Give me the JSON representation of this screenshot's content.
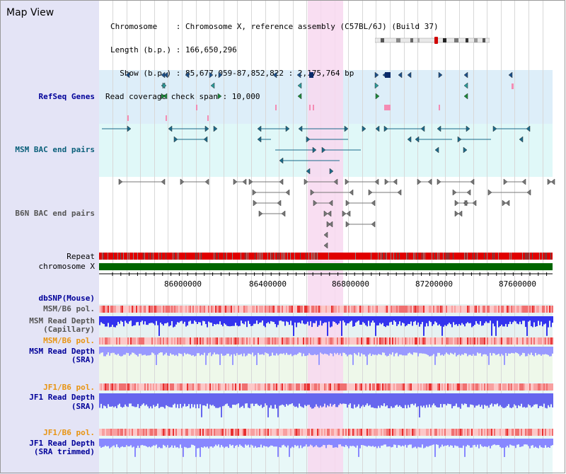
{
  "window": {
    "title": "Map View"
  },
  "info": {
    "chromosome_line": "Chromosome    : Chromosome X, reference assembly (C57BL/6J) (Build 37)",
    "length_line": "Length (b.p.) : 166,650,296",
    "show_line": "  Show (b.p.) : 85,677,059-87,852,822 : 2,175,764 bp",
    "coverage_line": "Read coverage check span : 10,000"
  },
  "tracks": {
    "refseq": "RefSeq Genes",
    "msm_bac": "MSM BAC end pairs",
    "b6n_bac": "B6N BAC end pairs",
    "repeat": "Repeat",
    "chromosome": "chromosome X",
    "dbsnp": "dbSNP(Mouse)",
    "msm_pol_1": "MSM/B6 pol.",
    "msm_depth_cap_1": "MSM Read Depth",
    "msm_depth_cap_2": "(Capillary)",
    "msm_pol_2": "MSM/B6 pol.",
    "msm_depth_sra_1": "MSM Read Depth",
    "msm_depth_sra_2": "(SRA)",
    "jf1_pol_1": "JF1/B6 pol.",
    "jf1_depth_sra_1": "JF1 Read Depth",
    "jf1_depth_sra_2": "(SRA)",
    "jf1_pol_2": "JF1/B6 pol.",
    "jf1_depth_trim_1": "JF1 Read Depth",
    "jf1_depth_trim_2": "(SRA trimmed)"
  },
  "axis": {
    "ticks": [
      "86000000",
      "86400000",
      "86800000",
      "87200000",
      "87600000"
    ]
  },
  "colors": {
    "refseq_bg": "#ddeef9",
    "bac_bg": "#e0f8f8",
    "highlight": "#f8d8f0",
    "chromosome": "#006600",
    "repeat": "#e00000",
    "depth": "#5555ff",
    "pol": "#f8b0b0"
  }
}
